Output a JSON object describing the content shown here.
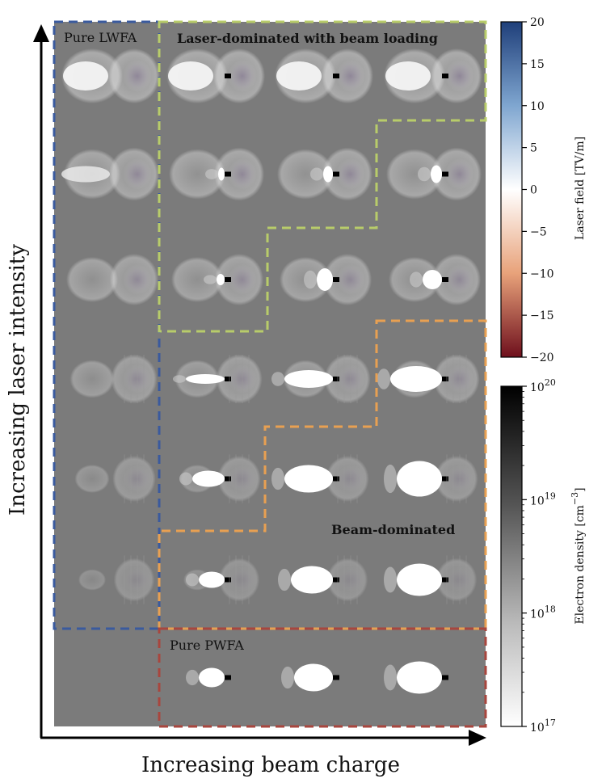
{
  "axes": {
    "x_label": "Increasing beam charge",
    "y_label": "Increasing laser intensity"
  },
  "regions": {
    "pure_lwfa": "Pure LWFA",
    "laser_dominated": "Laser-dominated with beam loading",
    "beam_dominated": "Beam-dominated",
    "pure_pwfa": "Pure PWFA"
  },
  "region_colors": {
    "pure_lwfa": "#3a5a9e",
    "laser_dominated": "#b8cc6a",
    "beam_dominated": "#e8a052",
    "pure_pwfa": "#a8463e"
  },
  "colorbar_laser": {
    "label": "Laser field [TV/m]",
    "ticks": [
      "20",
      "15",
      "10",
      "5",
      "0",
      "−5",
      "−10",
      "−15",
      "−20"
    ],
    "range": [
      -20,
      20
    ],
    "colors": [
      "#1f3f7a",
      "#7fa6d0",
      "#ffffff",
      "#e8a27a",
      "#6e0f1c"
    ]
  },
  "colorbar_density": {
    "label_main": "Electron density [cm",
    "label_exp": "−3",
    "label_close": "]",
    "ticks": [
      {
        "base": "10",
        "exp": "20"
      },
      {
        "base": "10",
        "exp": "19"
      },
      {
        "base": "10",
        "exp": "18"
      },
      {
        "base": "10",
        "exp": "17"
      }
    ],
    "scale": "log"
  },
  "grid": {
    "columns": 4,
    "rows": 7
  }
}
